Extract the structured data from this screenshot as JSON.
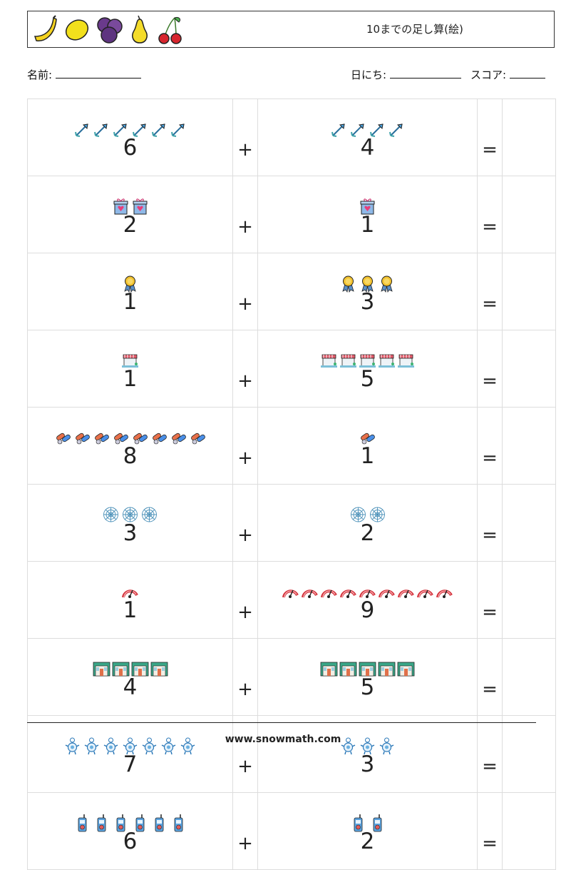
{
  "header": {
    "title": "10までの足し算(絵)",
    "fruits": [
      "banana-icon",
      "lemon-icon",
      "plum-icon",
      "pear-icon",
      "cherry-icon"
    ]
  },
  "meta": {
    "name_label": "名前:",
    "date_label": "日にち:",
    "score_label": "スコア:"
  },
  "operators": {
    "plus": "+",
    "equals": "="
  },
  "problems": [
    {
      "a": "6",
      "a_icon": "arrow-icon",
      "b": "4",
      "b_icon": "arrow-icon"
    },
    {
      "a": "2",
      "a_icon": "gift-box-icon",
      "b": "1",
      "b_icon": "gift-box-icon"
    },
    {
      "a": "1",
      "a_icon": "medal-icon",
      "b": "3",
      "b_icon": "medal-icon"
    },
    {
      "a": "1",
      "a_icon": "market-stall-icon",
      "b": "5",
      "b_icon": "market-stall-icon"
    },
    {
      "a": "8",
      "a_icon": "pill-icon",
      "b": "1",
      "b_icon": "pill-icon"
    },
    {
      "a": "3",
      "a_icon": "spider-web-icon",
      "b": "2",
      "b_icon": "spider-web-icon"
    },
    {
      "a": "1",
      "a_icon": "speedometer-icon",
      "b": "9",
      "b_icon": "speedometer-icon"
    },
    {
      "a": "4",
      "a_icon": "storefront-icon",
      "b": "5",
      "b_icon": "storefront-icon"
    },
    {
      "a": "7",
      "a_icon": "robot-icon",
      "b": "3",
      "b_icon": "robot-icon"
    },
    {
      "a": "6",
      "a_icon": "walkie-talkie-icon",
      "b": "2",
      "b_icon": "walkie-talkie-icon"
    }
  ],
  "footer": {
    "url": "www.snowmath.com"
  }
}
